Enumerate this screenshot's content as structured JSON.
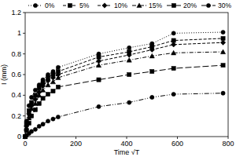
{
  "chart_data": {
    "type": "line",
    "x_label": "Time √T",
    "y_label": "I (mm)",
    "x": [
      0,
      5,
      15,
      25,
      40,
      55,
      70,
      90,
      110,
      130,
      290,
      410,
      500,
      585,
      780
    ],
    "series": [
      {
        "name": "0%",
        "color": "#000000",
        "marker": "circle",
        "line_style": "dotted",
        "values": [
          0,
          0.15,
          0.3,
          0.38,
          0.45,
          0.5,
          0.55,
          0.6,
          0.63,
          0.67,
          0.8,
          0.86,
          0.9,
          1.0,
          1.01
        ]
      },
      {
        "name": "5%",
        "color": "#000000",
        "marker": "square",
        "line_style": "dashed",
        "values": [
          0,
          0.12,
          0.25,
          0.33,
          0.4,
          0.47,
          0.52,
          0.57,
          0.6,
          0.63,
          0.77,
          0.82,
          0.87,
          0.93,
          0.95
        ]
      },
      {
        "name": "10%",
        "color": "#000000",
        "marker": "diamond",
        "line_style": "dashed",
        "values": [
          0,
          0.1,
          0.22,
          0.3,
          0.36,
          0.43,
          0.49,
          0.54,
          0.57,
          0.6,
          0.73,
          0.79,
          0.84,
          0.89,
          0.91
        ]
      },
      {
        "name": "15%",
        "color": "#000000",
        "marker": "triangle",
        "line_style": "dashdot",
        "values": [
          0,
          0.08,
          0.18,
          0.27,
          0.32,
          0.4,
          0.45,
          0.5,
          0.53,
          0.57,
          0.69,
          0.74,
          0.78,
          0.81,
          0.82
        ]
      },
      {
        "name": "20%",
        "color": "#000000",
        "marker": "square",
        "line_style": "longdash",
        "values": [
          0,
          0.06,
          0.13,
          0.2,
          0.26,
          0.32,
          0.37,
          0.41,
          0.44,
          0.48,
          0.55,
          0.6,
          0.63,
          0.66,
          0.69
        ]
      },
      {
        "name": "30%",
        "color": "#000000",
        "marker": "circle",
        "line_style": "dashdotdot",
        "values": [
          0,
          0.01,
          0.03,
          0.05,
          0.07,
          0.1,
          0.12,
          0.15,
          0.17,
          0.19,
          0.29,
          0.33,
          0.38,
          0.41,
          0.42
        ]
      }
    ],
    "xlim": [
      0,
      800
    ],
    "xticks": [
      0,
      200,
      400,
      600,
      800
    ],
    "ylim": [
      0,
      1.2
    ],
    "yticks": [
      0,
      0.2,
      0.4,
      0.6,
      0.8,
      1,
      1.2
    ],
    "grid": false,
    "legend": "top"
  }
}
